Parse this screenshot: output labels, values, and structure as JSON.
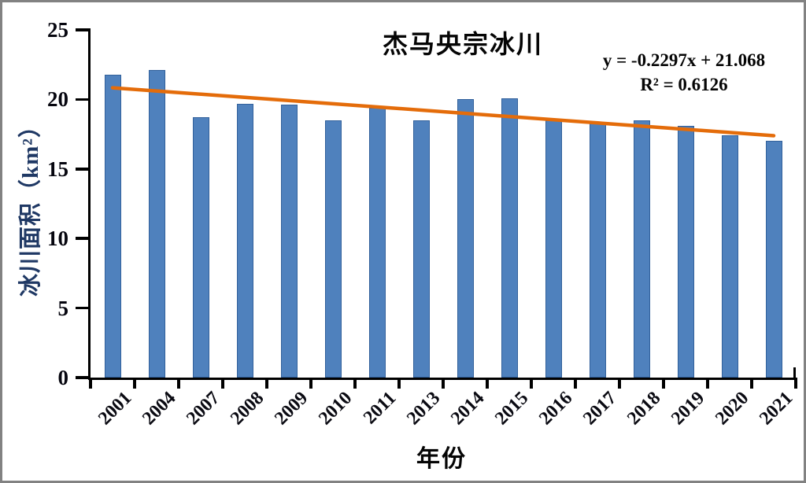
{
  "frame": {
    "background": "#ffffff",
    "border_color": "#828282"
  },
  "chart_data": {
    "type": "bar",
    "title": "杰马央宗冰川",
    "xlabel": "年份",
    "ylabel": "冰川面积（km²）",
    "categories": [
      "2001",
      "2004",
      "2007",
      "2008",
      "2009",
      "2010",
      "2011",
      "2013",
      "2014",
      "2015",
      "2016",
      "2017",
      "2018",
      "2019",
      "2020",
      "2021"
    ],
    "values": [
      21.8,
      22.1,
      18.7,
      19.7,
      19.6,
      18.5,
      19.4,
      18.5,
      20.0,
      20.1,
      18.5,
      18.4,
      18.5,
      18.1,
      17.4,
      17.0
    ],
    "series_name": "冰川面积",
    "ylim": [
      0,
      25
    ],
    "yticks": [
      0,
      5,
      10,
      15,
      20,
      25
    ],
    "grid": false,
    "legend": false,
    "bar_color": "#4F81BD",
    "bar_border_color": "#31609B",
    "axis_color": "#000000",
    "tick_label_color": "#06060f",
    "y_axis_title_color": "#1F3864",
    "trendline": {
      "type": "linear",
      "slope": -0.2297,
      "intercept": 21.068,
      "equation_label": "y = -0.2297x + 21.068",
      "r2_label": "R² = 0.6126",
      "color": "#E46C0A"
    }
  }
}
